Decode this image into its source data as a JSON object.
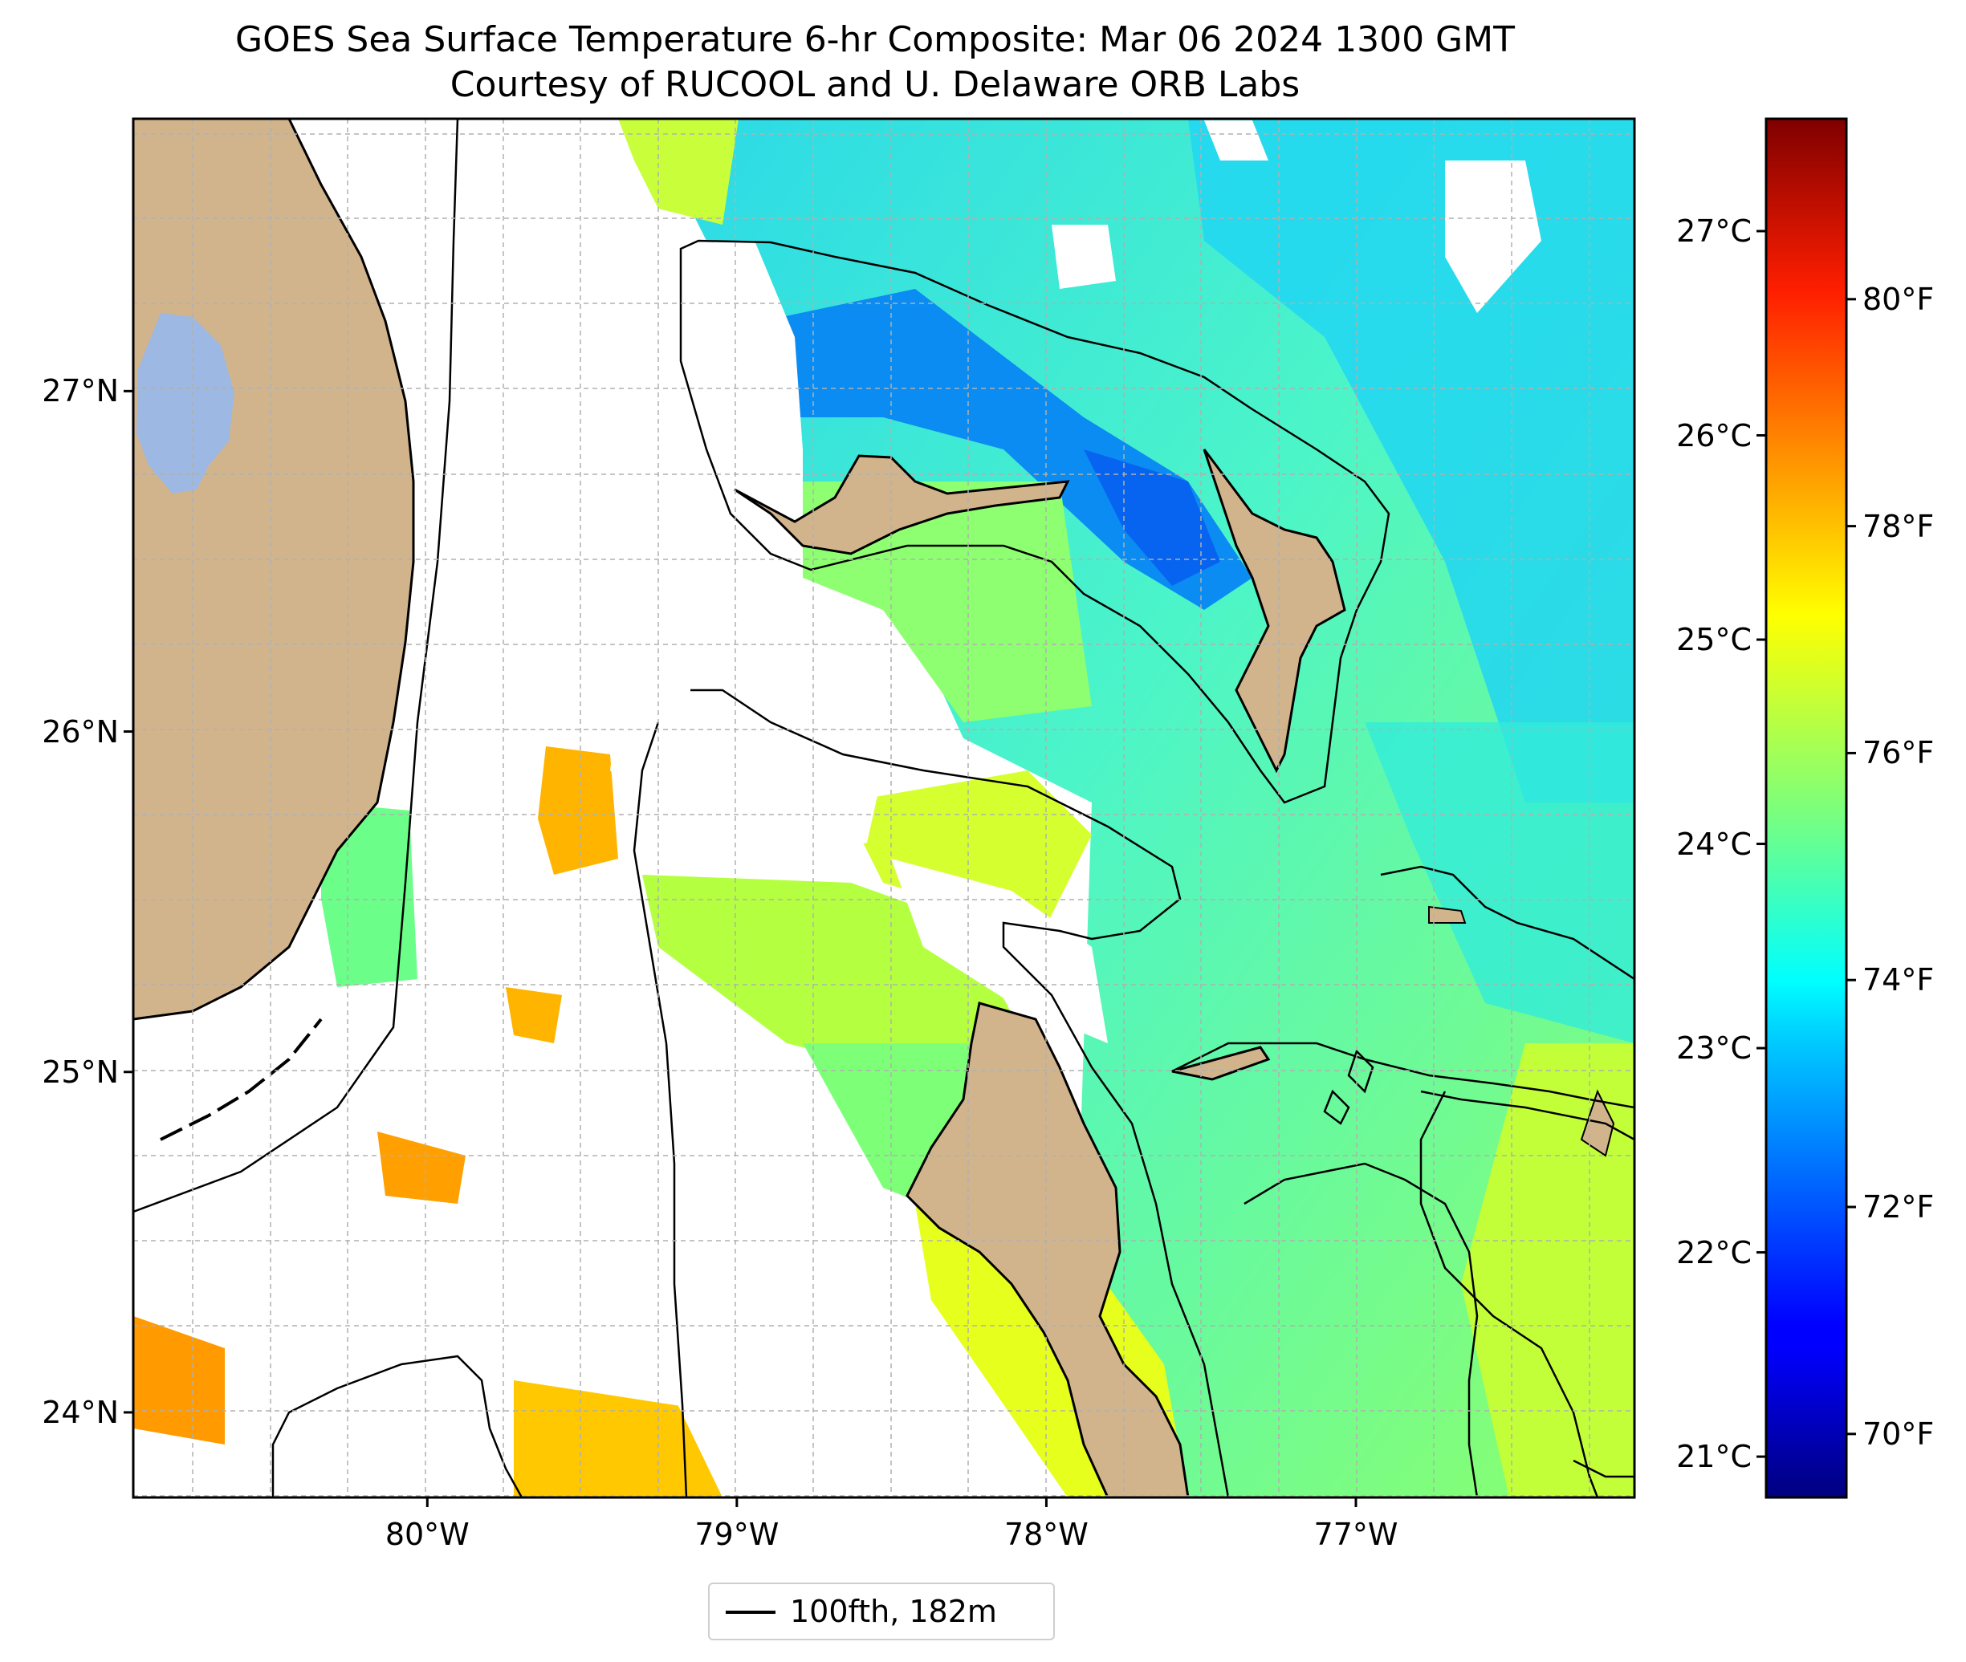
{
  "title": {
    "line1": "GOES Sea Surface Temperature 6-hr Composite: Mar 06 2024 1300 GMT",
    "line2": "Courtesy of RUCOOL and U. Delaware ORB Labs"
  },
  "map": {
    "lon_range": [
      -80.95,
      -76.1
    ],
    "lat_range": [
      23.75,
      27.8
    ],
    "lon_ticks": [
      {
        "value": -80,
        "label": "80°W"
      },
      {
        "value": -79,
        "label": "79°W"
      },
      {
        "value": -78,
        "label": "78°W"
      },
      {
        "value": -77,
        "label": "77°W"
      }
    ],
    "lat_ticks": [
      {
        "value": 27,
        "label": "27°N"
      },
      {
        "value": 26,
        "label": "26°N"
      },
      {
        "value": 25,
        "label": "25°N"
      },
      {
        "value": 24,
        "label": "24°N"
      }
    ],
    "gridlines": true,
    "colors": {
      "land": "#d2b48c",
      "lake": "#9db8e2",
      "coast": "#000000",
      "grid": "#b0b0b0"
    },
    "legend": {
      "label": "100fth, 182m",
      "placement": "bottom-center"
    }
  },
  "colorbar": {
    "colormap": "jet",
    "celsius_range": [
      20.8,
      27.55
    ],
    "celsius_ticks": [
      {
        "value": 27,
        "label": "27°C"
      },
      {
        "value": 26,
        "label": "26°C"
      },
      {
        "value": 25,
        "label": "25°C"
      },
      {
        "value": 24,
        "label": "24°C"
      },
      {
        "value": 23,
        "label": "23°C"
      },
      {
        "value": 22,
        "label": "22°C"
      },
      {
        "value": 21,
        "label": "21°C"
      }
    ],
    "fahrenheit_ticks": [
      {
        "value": 80,
        "label": "80°F"
      },
      {
        "value": 78,
        "label": "78°F"
      },
      {
        "value": 76,
        "label": "76°F"
      },
      {
        "value": 74,
        "label": "74°F"
      },
      {
        "value": 72,
        "label": "72°F"
      },
      {
        "value": 70,
        "label": "70°F"
      }
    ]
  }
}
